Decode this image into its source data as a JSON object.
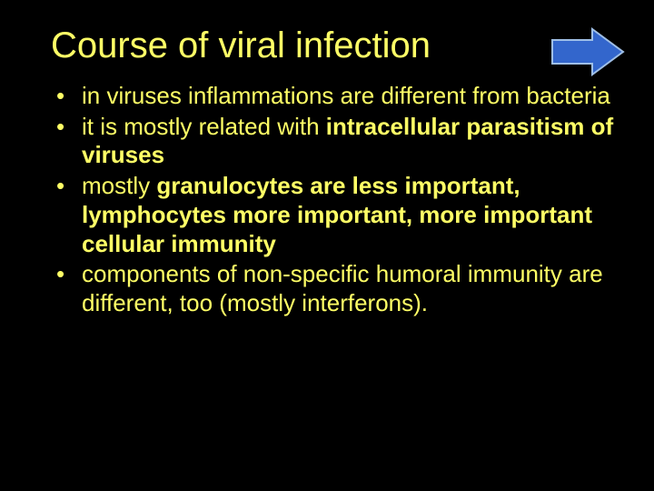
{
  "slide": {
    "background_color": "#000000",
    "text_color": "#ffff66",
    "title": "Course of viral infection",
    "title_fontsize": 40,
    "body_fontsize": 26,
    "bullets": [
      {
        "html": "in viruses inflammations are different from bacteria"
      },
      {
        "html": "it is mostly related with <span class=\"bold\">intracellular parasitism of viruses</span>"
      },
      {
        "html": "mostly <span class=\"bold\">granulocytes are less important, lymphocytes more important, more important cellular immunity</span>"
      },
      {
        "html": "components of non-specific humoral immunity are different, too (mostly interferons)."
      }
    ],
    "nav_arrow": {
      "fill": "#3366cc",
      "stroke": "#9fbfe6",
      "stroke_width": 2,
      "width": 86,
      "height": 58
    }
  }
}
